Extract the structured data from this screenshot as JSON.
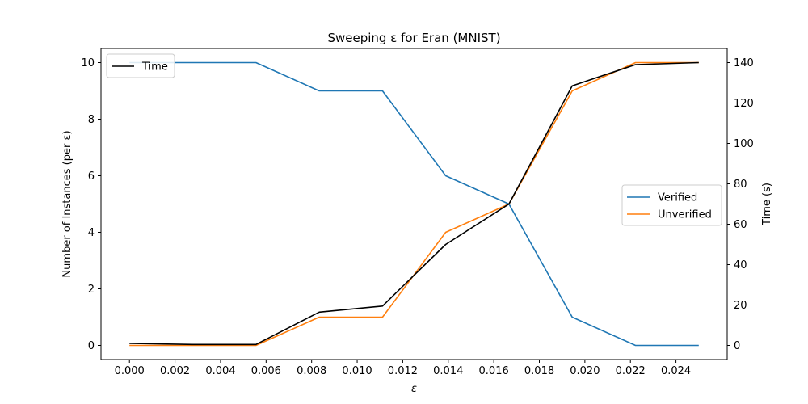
{
  "chart_data": {
    "type": "line",
    "title": "Sweeping ε for Eran (MNIST)",
    "xlabel": "ε",
    "ylabel": "Number of Instances (per ε)",
    "y2label": "Time (s)",
    "x": [
      0.0,
      0.002778,
      0.005556,
      0.008333,
      0.011111,
      0.013889,
      0.016667,
      0.019444,
      0.022222,
      0.025
    ],
    "xlim": [
      -0.00125,
      0.02625
    ],
    "ylim": [
      -0.5,
      10.5
    ],
    "y2lim": [
      -7,
      147
    ],
    "xticks": [
      0.0,
      0.002,
      0.004,
      0.006,
      0.008,
      0.01,
      0.012,
      0.014,
      0.016,
      0.018,
      0.02,
      0.022,
      0.024
    ],
    "xtick_labels": [
      "0.000",
      "0.002",
      "0.004",
      "0.006",
      "0.008",
      "0.010",
      "0.012",
      "0.014",
      "0.016",
      "0.018",
      "0.020",
      "0.022",
      "0.024"
    ],
    "yticks": [
      0,
      2,
      4,
      6,
      8,
      10
    ],
    "y2ticks": [
      0,
      20,
      40,
      60,
      80,
      100,
      120,
      140
    ],
    "series": [
      {
        "name": "Verified",
        "axis": "left",
        "color": "#1f77b4",
        "values": [
          10,
          10,
          10,
          9,
          9,
          6,
          5,
          1,
          0,
          0
        ]
      },
      {
        "name": "Unverified",
        "axis": "left",
        "color": "#ff7f0e",
        "values": [
          0,
          0,
          0,
          1,
          1,
          4,
          5,
          9,
          10,
          10
        ]
      },
      {
        "name": "Time",
        "axis": "right",
        "color": "#000000",
        "values": [
          1,
          0.5,
          0.5,
          16.5,
          19.5,
          50,
          70,
          128.5,
          139,
          140
        ]
      }
    ],
    "legends": [
      {
        "placement": "upper-left",
        "entries": [
          "Time"
        ]
      },
      {
        "placement": "center-right",
        "entries": [
          "Verified",
          "Unverified"
        ]
      }
    ],
    "grid": false
  }
}
